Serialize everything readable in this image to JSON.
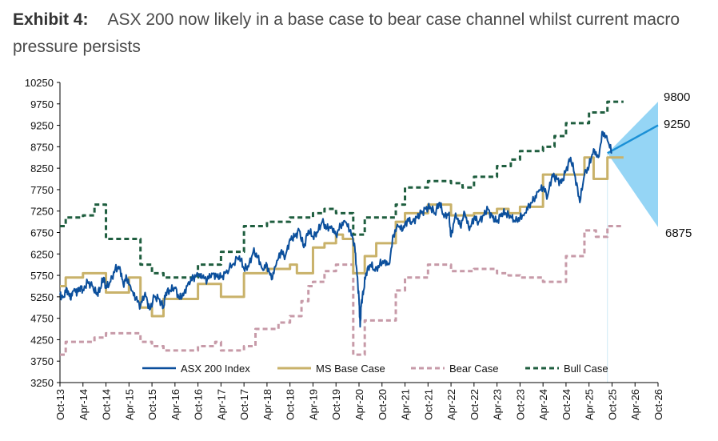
{
  "title": {
    "exhibit": "Exhibit 4:",
    "text": "ASX 200 now likely in a base case to bear case channel whilst current macro pressure persists"
  },
  "chart_data": {
    "type": "line",
    "x_axis": {
      "ticks": [
        "Oct-13",
        "Apr-14",
        "Oct-14",
        "Apr-15",
        "Oct-15",
        "Apr-16",
        "Oct-16",
        "Apr-17",
        "Oct-17",
        "Apr-18",
        "Oct-18",
        "Apr-19",
        "Oct-19",
        "Apr-20",
        "Oct-20",
        "Apr-21",
        "Oct-21",
        "Apr-22",
        "Oct-22",
        "Apr-23",
        "Oct-23",
        "Apr-24",
        "Oct-24",
        "Apr-25",
        "Oct-25",
        "Apr-26",
        "Oct-26"
      ]
    },
    "y_axis": {
      "range": [
        3250,
        10250
      ],
      "ticks": [
        3250,
        3750,
        4250,
        4750,
        5250,
        5750,
        6250,
        6750,
        7250,
        7750,
        8250,
        8750,
        9250,
        9750,
        10250
      ]
    },
    "grid": false,
    "legend_position": "bottom",
    "series": [
      {
        "name": "ASX 200 Index",
        "color": "#0b4f9c",
        "style": "solid",
        "x": [
          0.0,
          0.15,
          0.3,
          0.45,
          0.6,
          0.75,
          0.9,
          1.0,
          1.2,
          1.4,
          1.6,
          1.75,
          1.9,
          2.0,
          2.2,
          2.4,
          2.6,
          2.75,
          2.9,
          3.1,
          3.3,
          3.5,
          3.7,
          3.9,
          4.1,
          4.3,
          4.5,
          4.6,
          4.8,
          5.0,
          5.2,
          5.4,
          5.6,
          5.8,
          6.0,
          6.2,
          6.4,
          6.6,
          6.8,
          7.0,
          7.2,
          7.5,
          7.8,
          8.0,
          8.2,
          8.4,
          8.6,
          8.8,
          9.0,
          9.2,
          9.4,
          9.6,
          9.8,
          10.0,
          10.2,
          10.4,
          10.6,
          10.8,
          11.0,
          11.2,
          11.4,
          11.6,
          11.8,
          12.0,
          12.2,
          12.4,
          12.6,
          12.8,
          12.9,
          13.0,
          13.05,
          13.1,
          13.2,
          13.3,
          13.5,
          13.7,
          13.9,
          14.1,
          14.3,
          14.5,
          14.7,
          14.9,
          15.1,
          15.3,
          15.5,
          15.7,
          15.9,
          16.1,
          16.3,
          16.5,
          16.7,
          16.9,
          17.0,
          17.2,
          17.4,
          17.6,
          17.8,
          18.0,
          18.2,
          18.4,
          18.6,
          18.8,
          19.0,
          19.2,
          19.4,
          19.6,
          19.8,
          20.0,
          20.2,
          20.4,
          20.6,
          20.8,
          21.0,
          21.2,
          21.4,
          21.6,
          21.8,
          22.0,
          22.2,
          22.4,
          22.6,
          22.8,
          23.0,
          23.2,
          23.4,
          23.6,
          23.8,
          24.0
        ],
        "values": [
          5300,
          5250,
          5450,
          5200,
          5400,
          5350,
          5500,
          5400,
          5600,
          5500,
          5300,
          5450,
          5700,
          5450,
          5600,
          5900,
          5950,
          5550,
          5700,
          5400,
          5200,
          5050,
          5350,
          4950,
          5250,
          5200,
          5000,
          5350,
          5400,
          5450,
          5200,
          5350,
          5600,
          5700,
          5750,
          5700,
          5650,
          5800,
          5750,
          5700,
          5800,
          6000,
          6200,
          5900,
          5950,
          6300,
          6200,
          5900,
          6000,
          5650,
          6000,
          6300,
          6200,
          6600,
          6650,
          6800,
          6400,
          6800,
          6650,
          6750,
          7000,
          6850,
          6900,
          6700,
          6900,
          7000,
          6800,
          6500,
          5900,
          5200,
          4550,
          5100,
          5400,
          5800,
          6000,
          5850,
          6000,
          6100,
          6000,
          6700,
          6900,
          6800,
          7050,
          7000,
          7100,
          7200,
          7300,
          7350,
          7200,
          7450,
          7100,
          7200,
          6650,
          7200,
          6900,
          7200,
          6800,
          7100,
          7000,
          7150,
          7300,
          7100,
          7000,
          7200,
          7200,
          7100,
          7000,
          7100,
          7200,
          7400,
          7500,
          7700,
          7800,
          7600,
          8100,
          8000,
          7900,
          8200,
          8500,
          8050,
          7450,
          8100,
          8300,
          8700,
          8500,
          9100,
          8900,
          8600
        ]
      },
      {
        "name": "MS Base Case",
        "color": "#c9b26a",
        "style": "solid",
        "x": [
          0.0,
          0.25,
          0.25,
          1.0,
          1.0,
          2.0,
          2.0,
          3.0,
          3.0,
          3.5,
          3.5,
          4.0,
          4.0,
          4.5,
          4.5,
          6.0,
          6.0,
          7.0,
          7.0,
          8.0,
          8.0,
          9.0,
          9.0,
          10.0,
          10.0,
          10.3,
          10.3,
          11.0,
          11.0,
          11.5,
          11.5,
          12.0,
          12.0,
          12.3,
          12.3,
          12.75,
          12.75,
          13.25,
          13.25,
          13.75,
          13.75,
          14.6,
          14.6,
          15.0,
          15.0,
          16.0,
          16.0,
          17.0,
          17.0,
          18.0,
          18.0,
          19.0,
          19.0,
          19.5,
          19.5,
          20.0,
          20.0,
          21.0,
          21.0,
          22.0,
          22.0,
          22.8,
          22.8,
          23.2,
          23.2,
          23.8,
          23.8,
          24.5
        ],
        "values": [
          5500,
          5500,
          5700,
          5700,
          5800,
          5800,
          5350,
          5350,
          5700,
          5700,
          5000,
          5000,
          4800,
          4800,
          5200,
          5200,
          5550,
          5550,
          5250,
          5250,
          5800,
          5800,
          5900,
          5900,
          6000,
          6000,
          5800,
          5800,
          6400,
          6400,
          6500,
          6500,
          6700,
          6700,
          6600,
          6600,
          5800,
          5800,
          6200,
          6200,
          6500,
          6500,
          7000,
          7000,
          7200,
          7200,
          7400,
          7400,
          7150,
          7150,
          7200,
          7200,
          7300,
          7300,
          7200,
          7200,
          7350,
          7350,
          8100,
          8100,
          8100,
          8100,
          8500,
          8500,
          8000,
          8000,
          8500,
          8500
        ]
      },
      {
        "name": "Bear Case",
        "color": "#c79aa8",
        "style": "dashed",
        "x": [
          0.0,
          0.25,
          0.25,
          1.5,
          1.5,
          2.0,
          2.0,
          3.5,
          3.5,
          4.0,
          4.0,
          4.5,
          4.5,
          6.0,
          6.0,
          6.75,
          6.75,
          7.0,
          7.0,
          8.0,
          8.0,
          8.5,
          8.5,
          9.5,
          9.5,
          10.0,
          10.0,
          10.5,
          10.5,
          10.8,
          10.8,
          11.0,
          11.0,
          11.5,
          11.5,
          12.0,
          12.0,
          12.75,
          12.75,
          13.25,
          13.25,
          14.6,
          14.6,
          15.0,
          15.0,
          16.0,
          16.0,
          17.0,
          17.0,
          18.0,
          18.0,
          19.0,
          19.0,
          19.5,
          19.5,
          20.0,
          20.0,
          21.0,
          21.0,
          22.0,
          22.0,
          22.8,
          22.8,
          23.3,
          23.3,
          23.8,
          23.8,
          24.5
        ],
        "values": [
          3900,
          3900,
          4200,
          4200,
          4300,
          4300,
          4400,
          4400,
          4200,
          4200,
          4100,
          4100,
          4000,
          4000,
          4100,
          4100,
          4200,
          4200,
          4000,
          4000,
          4100,
          4100,
          4500,
          4500,
          4650,
          4650,
          4800,
          4800,
          5150,
          5150,
          5500,
          5500,
          5600,
          5600,
          5850,
          5850,
          6000,
          6000,
          3900,
          3900,
          4700,
          4700,
          5400,
          5400,
          5700,
          5700,
          6000,
          6000,
          5850,
          5850,
          5900,
          5900,
          5800,
          5800,
          5750,
          5750,
          5700,
          5700,
          5600,
          5600,
          6200,
          6200,
          6800,
          6800,
          6650,
          6650,
          6900,
          6900
        ]
      },
      {
        "name": "Bull Case",
        "color": "#1f5e3f",
        "style": "dashed",
        "x": [
          0.0,
          0.25,
          0.25,
          1.0,
          1.0,
          1.5,
          1.5,
          2.0,
          2.0,
          3.5,
          3.5,
          4.0,
          4.0,
          4.5,
          4.5,
          6.0,
          6.0,
          7.0,
          7.0,
          8.0,
          8.0,
          9.0,
          9.0,
          10.0,
          10.0,
          11.0,
          11.0,
          11.5,
          11.5,
          12.0,
          12.0,
          12.75,
          12.75,
          13.25,
          13.25,
          14.6,
          14.6,
          15.0,
          15.0,
          16.0,
          16.0,
          17.0,
          17.0,
          17.5,
          17.5,
          18.0,
          18.0,
          19.0,
          19.0,
          19.6,
          19.6,
          20.0,
          20.0,
          21.0,
          21.0,
          21.5,
          21.5,
          22.0,
          22.0,
          23.0,
          23.0,
          23.8,
          23.8,
          24.5
        ],
        "values": [
          6900,
          6900,
          7100,
          7100,
          7150,
          7150,
          7400,
          7400,
          6600,
          6600,
          6000,
          6000,
          5800,
          5800,
          5700,
          5700,
          6000,
          6000,
          6300,
          6300,
          6900,
          6900,
          7000,
          7000,
          7100,
          7100,
          7200,
          7200,
          7300,
          7300,
          7200,
          7200,
          6700,
          6700,
          7100,
          7100,
          7400,
          7400,
          7800,
          7800,
          7950,
          7950,
          7900,
          7900,
          7800,
          7800,
          8050,
          8050,
          8300,
          8300,
          8450,
          8450,
          8650,
          8650,
          8750,
          8750,
          9000,
          9000,
          9300,
          9300,
          9550,
          9550,
          9800,
          9800
        ]
      }
    ],
    "forecast_cone": {
      "start": 8600,
      "bull_end": 9800,
      "base_end": 9250,
      "bear_end": 6875,
      "color": "#8fd3f4",
      "line_color": "#1a90d6"
    },
    "annotations": [
      {
        "label": "9800",
        "value": 9800
      },
      {
        "label": "9250",
        "value": 9250
      },
      {
        "label": "6875",
        "value": 6875
      }
    ]
  }
}
